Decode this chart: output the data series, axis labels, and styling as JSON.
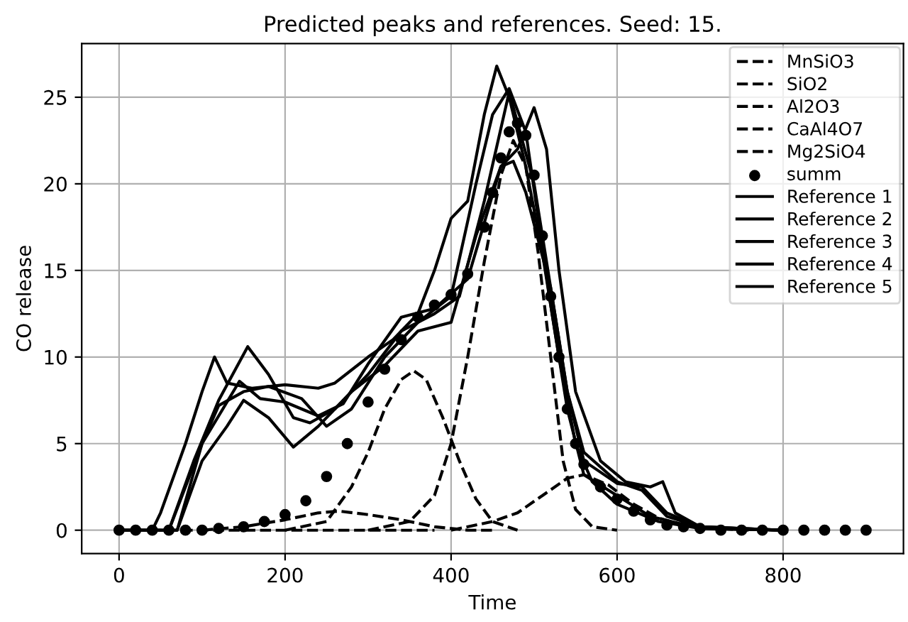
{
  "chart_data": {
    "type": "line",
    "title": "Predicted peaks and references. Seed: 15.",
    "xlabel": "Time",
    "ylabel": "CO release",
    "xlim": [
      -45,
      945
    ],
    "ylim": [
      -1.35,
      28.1
    ],
    "xticks": [
      0,
      200,
      400,
      600,
      800
    ],
    "yticks": [
      0,
      5,
      10,
      15,
      20,
      25
    ],
    "grid": true,
    "legend": "top right",
    "series": [
      {
        "name": "MnSiO3",
        "type": "line",
        "line_style": "dashed",
        "color": "#000000",
        "x": [
          200,
          250,
          280,
          300,
          320,
          340,
          355,
          370,
          390,
          410,
          430,
          450,
          480
        ],
        "values": [
          0,
          0.5,
          2.5,
          4.5,
          7,
          8.7,
          9.2,
          8.7,
          6.5,
          4,
          1.8,
          0.5,
          0
        ]
      },
      {
        "name": "SiO2",
        "type": "line",
        "line_style": "dashed",
        "color": "#000000",
        "x": [
          100,
          150,
          200,
          240,
          265,
          300,
          340,
          380,
          420,
          450
        ],
        "values": [
          0,
          0.2,
          0.6,
          1,
          1.1,
          0.9,
          0.6,
          0.2,
          0,
          0
        ]
      },
      {
        "name": "Al2O3",
        "type": "line",
        "line_style": "dashed",
        "color": "#000000",
        "x": [
          300,
          350,
          380,
          400,
          420,
          440,
          460,
          475,
          490,
          505,
          520,
          535,
          550,
          570,
          600
        ],
        "values": [
          0,
          0.5,
          2,
          5,
          10,
          15.5,
          20.5,
          22.5,
          21,
          16,
          10,
          4,
          1.2,
          0.2,
          0
        ]
      },
      {
        "name": "CaAl4O7",
        "type": "line",
        "line_style": "dashed",
        "color": "#000000",
        "x": [
          400,
          450,
          480,
          510,
          540,
          560,
          590,
          620,
          650,
          680,
          720,
          760
        ],
        "values": [
          0,
          0.5,
          1,
          2,
          3,
          3.2,
          2.6,
          1.5,
          0.7,
          0.3,
          0.1,
          0
        ]
      },
      {
        "name": "Mg2SiO4",
        "type": "line",
        "line_style": "dashed",
        "color": "#000000",
        "x": [
          0,
          380
        ],
        "values": [
          0,
          0
        ]
      },
      {
        "name": "summ",
        "type": "scatter",
        "marker": "circle",
        "color": "#000000",
        "x": [
          0,
          20,
          40,
          60,
          80,
          100,
          120,
          150,
          175,
          200,
          225,
          250,
          275,
          300,
          320,
          340,
          360,
          380,
          400,
          420,
          440,
          450,
          460,
          470,
          480,
          490,
          500,
          510,
          520,
          530,
          540,
          550,
          560,
          580,
          600,
          620,
          640,
          660,
          680,
          700,
          725,
          750,
          775,
          800,
          825,
          850,
          875,
          900
        ],
        "values": [
          0,
          0,
          0,
          0,
          0,
          0,
          0.1,
          0.2,
          0.5,
          0.9,
          1.7,
          3.1,
          5,
          7.4,
          9.3,
          11,
          12.3,
          13,
          13.6,
          14.8,
          17.5,
          19.5,
          21.5,
          23,
          23.5,
          22.8,
          20.5,
          17,
          13.5,
          10,
          7,
          5,
          3.8,
          2.5,
          1.8,
          1.1,
          0.6,
          0.3,
          0.2,
          0.1,
          0,
          0,
          0,
          0,
          0,
          0,
          0,
          0
        ]
      },
      {
        "name": "Reference 1",
        "type": "line",
        "line_style": "solid",
        "color": "#000000",
        "x": [
          0,
          40,
          50,
          80,
          100,
          115,
          130,
          160,
          200,
          240,
          260,
          300,
          330,
          360,
          380,
          400,
          420,
          440,
          455,
          470,
          490,
          510,
          530,
          550,
          570,
          600,
          650,
          700,
          800
        ],
        "values": [
          0,
          0,
          1,
          5,
          8,
          10,
          8.5,
          8.2,
          8.4,
          8.2,
          8.5,
          10,
          11,
          12.5,
          15,
          18,
          19,
          24,
          26.8,
          25,
          21,
          16,
          10,
          5,
          2.8,
          1.5,
          0.5,
          0.1,
          0
        ]
      },
      {
        "name": "Reference 2",
        "type": "line",
        "line_style": "solid",
        "color": "#000000",
        "x": [
          0,
          60,
          90,
          120,
          155,
          180,
          210,
          230,
          260,
          300,
          340,
          380,
          410,
          440,
          470,
          500,
          520,
          540,
          560,
          600,
          630,
          660,
          700,
          800
        ],
        "values": [
          0,
          0,
          4,
          7.5,
          10.6,
          9,
          6.5,
          6.2,
          7,
          9,
          11.5,
          12.5,
          13.5,
          19,
          25.3,
          20,
          14,
          8,
          4.5,
          2.8,
          2.3,
          0.8,
          0.2,
          0
        ]
      },
      {
        "name": "Reference 3",
        "type": "line",
        "line_style": "solid",
        "color": "#000000",
        "x": [
          0,
          70,
          100,
          130,
          150,
          180,
          210,
          240,
          280,
          320,
          360,
          400,
          430,
          460,
          475,
          490,
          520,
          540,
          560,
          600,
          630,
          660,
          700,
          800
        ],
        "values": [
          0,
          0,
          4,
          6,
          7.5,
          6.5,
          4.8,
          6,
          8,
          9.5,
          11.5,
          12,
          17,
          21,
          21.3,
          19.5,
          14,
          8,
          4,
          2.7,
          2.5,
          1,
          0.2,
          0
        ]
      },
      {
        "name": "Reference 4",
        "type": "line",
        "line_style": "solid",
        "color": "#000000",
        "x": [
          0,
          60,
          100,
          145,
          170,
          200,
          240,
          270,
          300,
          340,
          380,
          420,
          460,
          480,
          500,
          515,
          530,
          550,
          580,
          610,
          640,
          655,
          670,
          700,
          800
        ],
        "values": [
          0,
          0,
          5,
          8.6,
          7.6,
          7.4,
          6.6,
          7.3,
          9.6,
          12.3,
          12.8,
          14.5,
          21,
          22,
          24.4,
          22,
          15,
          8,
          4,
          2.8,
          2.5,
          2.8,
          1,
          0.2,
          0
        ]
      },
      {
        "name": "Reference 5",
        "type": "line",
        "line_style": "solid",
        "color": "#000000",
        "x": [
          0,
          70,
          100,
          120,
          150,
          180,
          220,
          250,
          280,
          320,
          360,
          400,
          430,
          450,
          470,
          490,
          520,
          540,
          560,
          600,
          640,
          700,
          800
        ],
        "values": [
          0,
          0,
          5,
          7.2,
          8,
          8.3,
          7.6,
          6,
          7,
          10,
          12,
          13.5,
          20,
          24,
          25.5,
          23,
          13,
          7,
          3.2,
          2,
          0.8,
          0.1,
          0
        ]
      }
    ]
  }
}
